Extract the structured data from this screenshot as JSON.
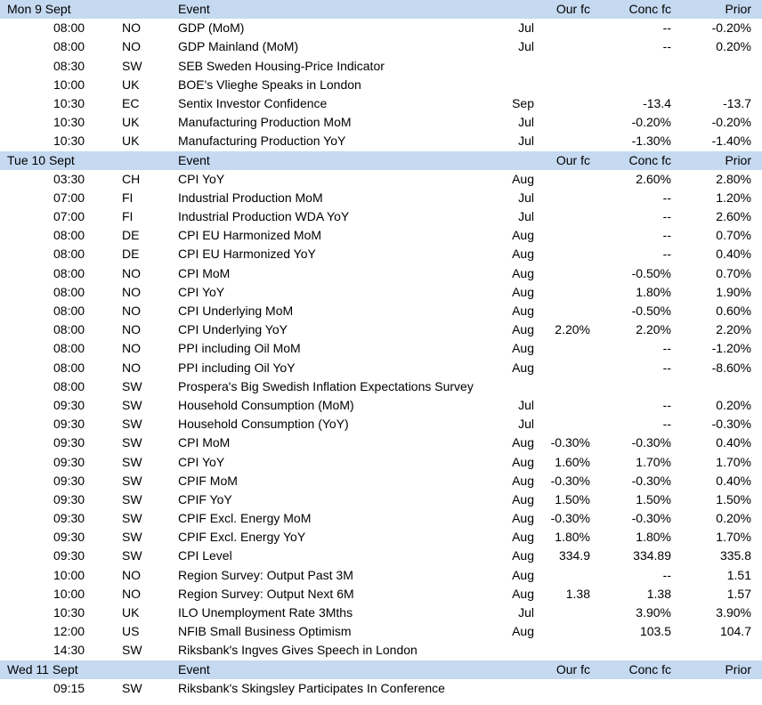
{
  "columns": {
    "event": "Event",
    "our_fc": "Our fc",
    "conc_fc": "Conc fc",
    "prior": "Prior"
  },
  "header_color": "#c5d9f1",
  "days": [
    {
      "label": "Mon 9 Sept",
      "rows": [
        {
          "time": "08:00",
          "country": "NO",
          "event": "GDP (MoM)",
          "period": "Jul",
          "our_fc": "",
          "conc_fc": "--",
          "prior": "-0.20%"
        },
        {
          "time": "08:00",
          "country": "NO",
          "event": "GDP Mainland (MoM)",
          "period": "Jul",
          "our_fc": "",
          "conc_fc": "--",
          "prior": "0.20%"
        },
        {
          "time": "08:30",
          "country": "SW",
          "event": "SEB Sweden Housing-Price Indicator",
          "period": "",
          "our_fc": "",
          "conc_fc": "",
          "prior": ""
        },
        {
          "time": "10:00",
          "country": "UK",
          "event": "BOE's Vlieghe Speaks in London",
          "period": "",
          "our_fc": "",
          "conc_fc": "",
          "prior": ""
        },
        {
          "time": "10:30",
          "country": "EC",
          "event": "Sentix Investor Confidence",
          "period": "Sep",
          "our_fc": "",
          "conc_fc": "-13.4",
          "prior": "-13.7"
        },
        {
          "time": "10:30",
          "country": "UK",
          "event": "Manufacturing Production MoM",
          "period": "Jul",
          "our_fc": "",
          "conc_fc": "-0.20%",
          "prior": "-0.20%"
        },
        {
          "time": "10:30",
          "country": "UK",
          "event": "Manufacturing Production YoY",
          "period": "Jul",
          "our_fc": "",
          "conc_fc": "-1.30%",
          "prior": "-1.40%"
        }
      ]
    },
    {
      "label": "Tue 10 Sept",
      "rows": [
        {
          "time": "03:30",
          "country": "CH",
          "event": "CPI YoY",
          "period": "Aug",
          "our_fc": "",
          "conc_fc": "2.60%",
          "prior": "2.80%"
        },
        {
          "time": "07:00",
          "country": "FI",
          "event": "Industrial Production MoM",
          "period": "Jul",
          "our_fc": "",
          "conc_fc": "--",
          "prior": "1.20%"
        },
        {
          "time": "07:00",
          "country": "FI",
          "event": "Industrial Production WDA YoY",
          "period": "Jul",
          "our_fc": "",
          "conc_fc": "--",
          "prior": "2.60%"
        },
        {
          "time": "08:00",
          "country": "DE",
          "event": "CPI EU Harmonized MoM",
          "period": "Aug",
          "our_fc": "",
          "conc_fc": "--",
          "prior": "0.70%"
        },
        {
          "time": "08:00",
          "country": "DE",
          "event": "CPI EU Harmonized YoY",
          "period": "Aug",
          "our_fc": "",
          "conc_fc": "--",
          "prior": "0.40%"
        },
        {
          "time": "08:00",
          "country": "NO",
          "event": "CPI MoM",
          "period": "Aug",
          "our_fc": "",
          "conc_fc": "-0.50%",
          "prior": "0.70%"
        },
        {
          "time": "08:00",
          "country": "NO",
          "event": "CPI YoY",
          "period": "Aug",
          "our_fc": "",
          "conc_fc": "1.80%",
          "prior": "1.90%"
        },
        {
          "time": "08:00",
          "country": "NO",
          "event": "CPI Underlying MoM",
          "period": "Aug",
          "our_fc": "",
          "conc_fc": "-0.50%",
          "prior": "0.60%"
        },
        {
          "time": "08:00",
          "country": "NO",
          "event": "CPI Underlying YoY",
          "period": "Aug",
          "our_fc": "2.20%",
          "conc_fc": "2.20%",
          "prior": "2.20%"
        },
        {
          "time": "08:00",
          "country": "NO",
          "event": "PPI including Oil MoM",
          "period": "Aug",
          "our_fc": "",
          "conc_fc": "--",
          "prior": "-1.20%"
        },
        {
          "time": "08:00",
          "country": "NO",
          "event": "PPI including Oil YoY",
          "period": "Aug",
          "our_fc": "",
          "conc_fc": "--",
          "prior": "-8.60%"
        },
        {
          "time": "08:00",
          "country": "SW",
          "event": "Prospera's Big Swedish Inflation Expectations Survey",
          "period": "",
          "our_fc": "",
          "conc_fc": "",
          "prior": ""
        },
        {
          "time": "09:30",
          "country": "SW",
          "event": "Household Consumption (MoM)",
          "period": "Jul",
          "our_fc": "",
          "conc_fc": "--",
          "prior": "0.20%"
        },
        {
          "time": "09:30",
          "country": "SW",
          "event": "Household Consumption (YoY)",
          "period": "Jul",
          "our_fc": "",
          "conc_fc": "--",
          "prior": "-0.30%"
        },
        {
          "time": "09:30",
          "country": "SW",
          "event": "CPI MoM",
          "period": "Aug",
          "our_fc": "-0.30%",
          "conc_fc": "-0.30%",
          "prior": "0.40%"
        },
        {
          "time": "09:30",
          "country": "SW",
          "event": "CPI YoY",
          "period": "Aug",
          "our_fc": "1.60%",
          "conc_fc": "1.70%",
          "prior": "1.70%"
        },
        {
          "time": "09:30",
          "country": "SW",
          "event": "CPIF MoM",
          "period": "Aug",
          "our_fc": "-0.30%",
          "conc_fc": "-0.30%",
          "prior": "0.40%"
        },
        {
          "time": "09:30",
          "country": "SW",
          "event": "CPIF YoY",
          "period": "Aug",
          "our_fc": "1.50%",
          "conc_fc": "1.50%",
          "prior": "1.50%"
        },
        {
          "time": "09:30",
          "country": "SW",
          "event": "CPIF Excl. Energy MoM",
          "period": "Aug",
          "our_fc": "-0.30%",
          "conc_fc": "-0.30%",
          "prior": "0.20%"
        },
        {
          "time": "09:30",
          "country": "SW",
          "event": "CPIF Excl. Energy YoY",
          "period": "Aug",
          "our_fc": "1.80%",
          "conc_fc": "1.80%",
          "prior": "1.70%"
        },
        {
          "time": "09:30",
          "country": "SW",
          "event": "CPI Level",
          "period": "Aug",
          "our_fc": "334.9",
          "conc_fc": "334.89",
          "prior": "335.8"
        },
        {
          "time": "10:00",
          "country": "NO",
          "event": "Region Survey: Output Past 3M",
          "period": "Aug",
          "our_fc": "",
          "conc_fc": "--",
          "prior": "1.51"
        },
        {
          "time": "10:00",
          "country": "NO",
          "event": "Region Survey: Output Next 6M",
          "period": "Aug",
          "our_fc": "1.38",
          "conc_fc": "1.38",
          "prior": "1.57"
        },
        {
          "time": "10:30",
          "country": "UK",
          "event": "ILO Unemployment Rate 3Mths",
          "period": "Jul",
          "our_fc": "",
          "conc_fc": "3.90%",
          "prior": "3.90%"
        },
        {
          "time": "12:00",
          "country": "US",
          "event": "NFIB Small Business Optimism",
          "period": "Aug",
          "our_fc": "",
          "conc_fc": "103.5",
          "prior": "104.7"
        },
        {
          "time": "14:30",
          "country": "SW",
          "event": "Riksbank's Ingves Gives Speech in London",
          "period": "",
          "our_fc": "",
          "conc_fc": "",
          "prior": ""
        }
      ]
    },
    {
      "label": "Wed 11 Sept",
      "rows": [
        {
          "time": "09:15",
          "country": "SW",
          "event": "Riksbank's Skingsley Participates In Conference",
          "period": "",
          "our_fc": "",
          "conc_fc": "",
          "prior": ""
        }
      ]
    }
  ]
}
